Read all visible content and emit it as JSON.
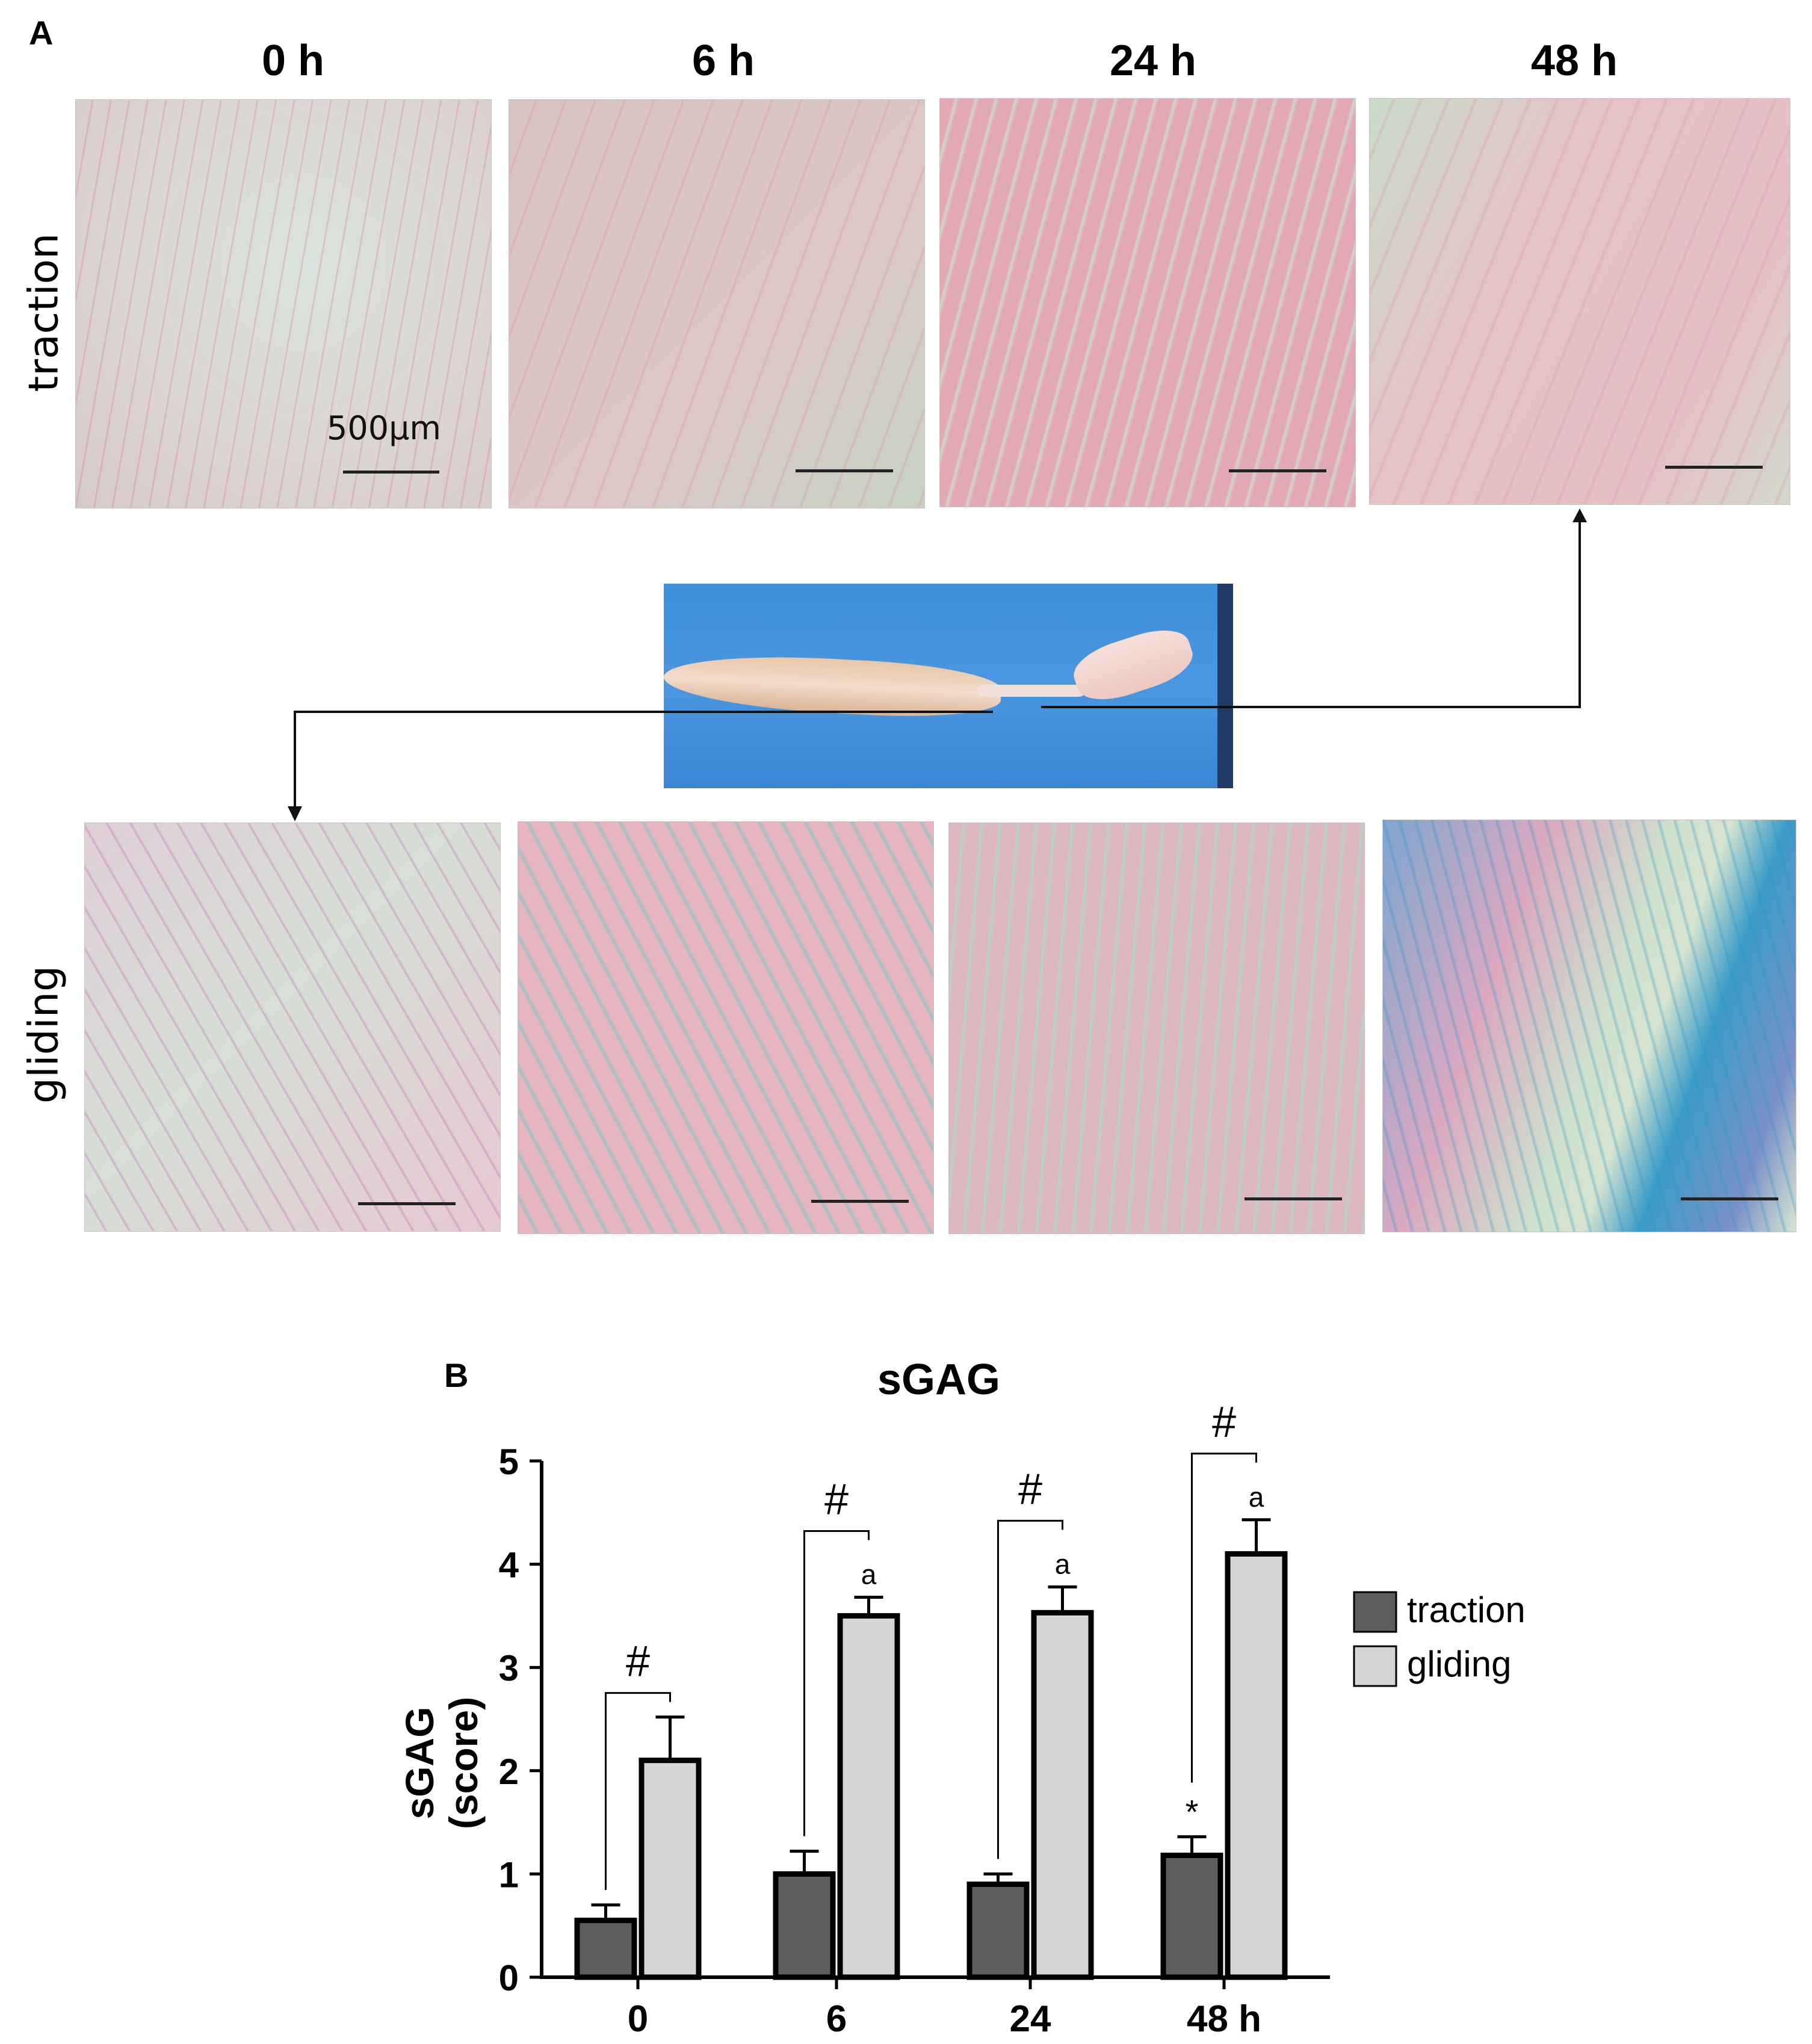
{
  "panel_a": {
    "letter": "A",
    "timepoints": [
      "0 h",
      "6 h",
      "24 h",
      "48 h"
    ],
    "rows": [
      "traction",
      "gliding"
    ],
    "scale_label": "500µm"
  },
  "panel_b": {
    "letter": "B"
  },
  "chart_data": {
    "type": "bar",
    "title": "sGAG",
    "ylabel_line1": "sGAG",
    "ylabel_line2": "(score)",
    "xlabel": "",
    "categories": [
      "0",
      "6",
      "24",
      "48 h"
    ],
    "ylim": [
      0,
      5
    ],
    "yticks": [
      "0",
      "1",
      "2",
      "3",
      "4",
      "5"
    ],
    "series": [
      {
        "name": "traction",
        "values": [
          0.55,
          1.0,
          0.9,
          1.18
        ],
        "errors": [
          0.15,
          0.22,
          0.1,
          0.18
        ],
        "color": "#5d5d5d"
      },
      {
        "name": "gliding",
        "values": [
          2.1,
          3.5,
          3.53,
          4.1
        ],
        "errors": [
          0.42,
          0.18,
          0.25,
          0.33
        ],
        "color": "#d6d6d6"
      }
    ],
    "gliding_marks": [
      "",
      "a",
      "a",
      "a"
    ],
    "traction_marks": [
      "",
      "",
      "",
      "*"
    ],
    "comparison_mark": "#",
    "legend_position": "right"
  }
}
